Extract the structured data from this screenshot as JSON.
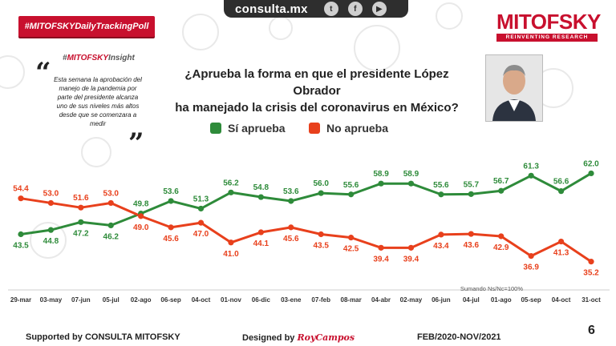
{
  "header": {
    "site": "consulta.mx",
    "social": [
      {
        "icon": "twitter-icon",
        "glyph": "t"
      },
      {
        "icon": "facebook-icon",
        "glyph": "f"
      },
      {
        "icon": "youtube-icon",
        "glyph": "▶"
      }
    ],
    "tag": "#MITOFSKYDailyTrackingPoll",
    "brand_name": "MITOFSKY",
    "brand_sub": "REINVENTING RESEARCH"
  },
  "insight": {
    "hash": "#",
    "brand": "MITOFSKY",
    "label": "Insight",
    "text": "Esta semana la aprobación del manejo de la pandemia por parte del presidente alcanza uno de sus niveles más altos desde que se comenzara a medir"
  },
  "question_line1": "¿Aprueba la forma en que el presidente López Obrador",
  "question_line2": "ha manejado la crisis del coronavirus en México?",
  "chart_data": {
    "type": "line",
    "categories": [
      "29-mar",
      "03-may",
      "07-jun",
      "05-jul",
      "02-ago",
      "06-sep",
      "04-oct",
      "01-nov",
      "06-dic",
      "03-ene",
      "07-feb",
      "08-mar",
      "04-abr",
      "02-may",
      "06-jun",
      "04-jul",
      "01-ago",
      "05-sep",
      "04-oct",
      "31-oct"
    ],
    "series": [
      {
        "name": "Sí aprueba",
        "color": "#2e8b3a",
        "values": [
          43.5,
          44.8,
          47.2,
          46.2,
          49.8,
          53.6,
          51.3,
          56.2,
          54.8,
          53.6,
          56.0,
          55.6,
          58.9,
          58.9,
          55.6,
          55.7,
          56.7,
          61.3,
          56.6,
          62.0
        ]
      },
      {
        "name": "No aprueba",
        "color": "#e8401c",
        "values": [
          54.4,
          53.0,
          51.6,
          53.0,
          49.0,
          45.6,
          47.0,
          41.0,
          44.1,
          45.6,
          43.5,
          42.5,
          39.4,
          39.4,
          43.4,
          43.6,
          42.9,
          36.9,
          41.3,
          35.2
        ]
      }
    ],
    "ylim": [
      30,
      66
    ],
    "note": "Sumando Ns/Nc=100%",
    "grid": false
  },
  "footer": {
    "supported": "Supported by  CONSULTA  MITOFSKY",
    "designed_label": "Designed by",
    "designer": "RoyCampos",
    "period": "FEB/2020-NOV/2021",
    "page": "6"
  }
}
